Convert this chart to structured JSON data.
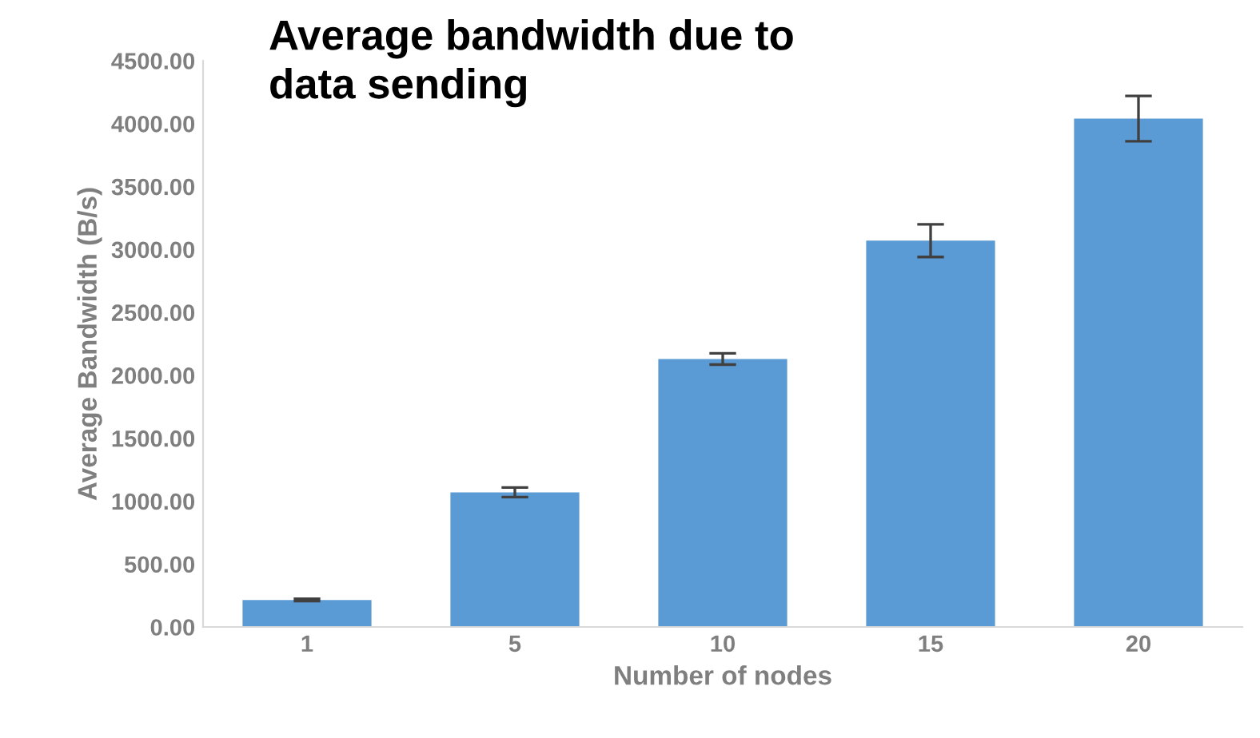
{
  "chart_data": {
    "type": "bar",
    "title": "Average bandwidth due to\ndata sending",
    "xlabel": "Number of nodes",
    "ylabel": "Average Bandwidth (B/s)",
    "categories": [
      "1",
      "5",
      "10",
      "15",
      "20"
    ],
    "values": [
      215,
      1070,
      2130,
      3070,
      4040
    ],
    "errors": [
      10,
      38,
      45,
      130,
      180
    ],
    "color": "#5b9bd5",
    "ylim": [
      0,
      4500
    ],
    "yticks": [
      {
        "value": 0,
        "label": "0.00"
      },
      {
        "value": 500,
        "label": "500.00"
      },
      {
        "value": 1000,
        "label": "1000.00"
      },
      {
        "value": 1500,
        "label": "1500.00"
      },
      {
        "value": 2000,
        "label": "2000.00"
      },
      {
        "value": 2500,
        "label": "2500.00"
      },
      {
        "value": 3000,
        "label": "3000.00"
      },
      {
        "value": 3500,
        "label": "3500.00"
      },
      {
        "value": 4000,
        "label": "4000.00"
      },
      {
        "value": 4500,
        "label": "4500.00"
      }
    ],
    "grid": false
  }
}
